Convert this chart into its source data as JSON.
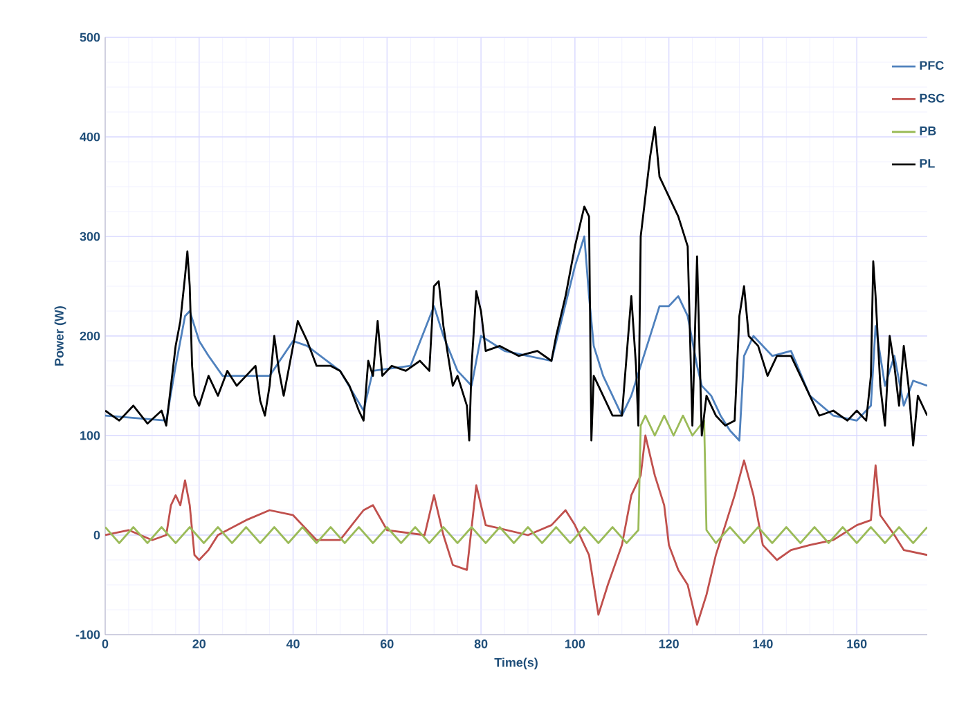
{
  "chart_data": {
    "type": "line",
    "xlabel": "Time(s)",
    "ylabel": "Power (W)",
    "xlim": [
      0,
      175
    ],
    "ylim": [
      -100,
      500
    ],
    "xticks": [
      0,
      20,
      40,
      60,
      80,
      100,
      120,
      140,
      160
    ],
    "yticks": [
      -100,
      0,
      100,
      200,
      300,
      400,
      500
    ],
    "grid": true,
    "legend": "top right",
    "series": [
      {
        "name": "PFC",
        "color": "#4f81bd",
        "x": [
          0,
          13,
          15,
          17,
          18,
          20,
          22,
          25,
          30,
          35,
          40,
          43,
          50,
          55,
          57,
          65,
          70,
          72,
          75,
          78,
          80,
          85,
          95,
          100,
          102,
          103,
          104,
          106,
          108,
          110,
          112,
          114,
          116,
          118,
          120,
          122,
          124,
          126,
          127,
          129,
          131,
          133,
          135,
          136,
          138,
          142,
          146,
          150,
          155,
          160,
          163,
          164,
          166,
          168,
          170,
          172,
          175
        ],
        "values": [
          120,
          115,
          170,
          220,
          225,
          195,
          180,
          160,
          160,
          160,
          195,
          190,
          165,
          125,
          165,
          170,
          230,
          200,
          165,
          150,
          200,
          185,
          175,
          270,
          300,
          240,
          190,
          160,
          140,
          120,
          140,
          170,
          200,
          230,
          230,
          240,
          220,
          170,
          150,
          140,
          120,
          105,
          95,
          180,
          200,
          180,
          185,
          140,
          120,
          115,
          130,
          210,
          150,
          180,
          130,
          155,
          150
        ]
      },
      {
        "name": "PSC",
        "color": "#c0504d",
        "x": [
          0,
          5,
          10,
          13,
          14,
          15,
          16,
          17,
          18,
          19,
          20,
          22,
          24,
          30,
          35,
          40,
          45,
          50,
          55,
          57,
          60,
          68,
          70,
          72,
          74,
          77,
          79,
          81,
          90,
          95,
          98,
          100,
          103,
          105,
          107,
          110,
          112,
          114,
          115,
          117,
          119,
          120,
          122,
          124,
          126,
          128,
          130,
          132,
          134,
          136,
          138,
          140,
          143,
          146,
          150,
          155,
          160,
          163,
          164,
          165,
          168,
          170,
          175
        ],
        "values": [
          0,
          5,
          -5,
          0,
          30,
          40,
          30,
          55,
          30,
          -20,
          -25,
          -15,
          0,
          15,
          25,
          20,
          -5,
          -5,
          25,
          30,
          5,
          0,
          40,
          0,
          -30,
          -35,
          50,
          10,
          0,
          10,
          25,
          10,
          -20,
          -80,
          -50,
          -10,
          40,
          60,
          100,
          60,
          30,
          -10,
          -35,
          -50,
          -90,
          -60,
          -20,
          10,
          40,
          75,
          40,
          -10,
          -25,
          -15,
          -10,
          -5,
          10,
          15,
          70,
          20,
          0,
          -15,
          -20
        ]
      },
      {
        "name": "PB",
        "color": "#9bbb59",
        "x": [
          0,
          3,
          6,
          9,
          12,
          15,
          18,
          21,
          24,
          27,
          30,
          33,
          36,
          39,
          42,
          45,
          48,
          51,
          54,
          57,
          60,
          63,
          66,
          69,
          72,
          75,
          78,
          81,
          84,
          87,
          90,
          93,
          96,
          99,
          102,
          105,
          108,
          111,
          113.5,
          114,
          115,
          117,
          119,
          121,
          123,
          125,
          127.5,
          128,
          130,
          133,
          136,
          139,
          142,
          145,
          148,
          151,
          154,
          157,
          160,
          163,
          166,
          169,
          172,
          175
        ],
        "values": [
          8,
          -8,
          8,
          -8,
          8,
          -8,
          8,
          -8,
          8,
          -8,
          8,
          -8,
          8,
          -8,
          8,
          -8,
          8,
          -8,
          8,
          -8,
          8,
          -8,
          8,
          -8,
          8,
          -8,
          8,
          -8,
          8,
          -8,
          8,
          -8,
          8,
          -8,
          8,
          -8,
          8,
          -8,
          5,
          110,
          120,
          100,
          120,
          100,
          120,
          100,
          115,
          5,
          -8,
          8,
          -8,
          8,
          -8,
          8,
          -8,
          8,
          -8,
          8,
          -8,
          8,
          -8,
          8,
          -8,
          8
        ]
      },
      {
        "name": "PL",
        "color": "#000000",
        "x": [
          0,
          3,
          6,
          9,
          12,
          13,
          14,
          15,
          16,
          17,
          17.5,
          18,
          18.5,
          19,
          20,
          22,
          24,
          26,
          28,
          30,
          32,
          33,
          34,
          35,
          36,
          37,
          38,
          40,
          41,
          43,
          45,
          48,
          50,
          52,
          54,
          55,
          56,
          57,
          58,
          59,
          61,
          64,
          67,
          69,
          70,
          71,
          72,
          73,
          74,
          75,
          77,
          77.5,
          78,
          79,
          80,
          81,
          84,
          88,
          92,
          95,
          96,
          98,
          100,
          102,
          103,
          103.5,
          104,
          106,
          108,
          110,
          111,
          112,
          113,
          113.5,
          114,
          116,
          117,
          118,
          120,
          122,
          124,
          125,
          126,
          127,
          128,
          130,
          132,
          134,
          135,
          136,
          137,
          139,
          141,
          143,
          146,
          148,
          150,
          152,
          155,
          158,
          160,
          162,
          163,
          163.5,
          164,
          165,
          166,
          167,
          168,
          169,
          170,
          171,
          172,
          173,
          175
        ],
        "values": [
          125,
          115,
          130,
          112,
          125,
          110,
          150,
          190,
          215,
          260,
          285,
          250,
          170,
          140,
          130,
          160,
          140,
          165,
          150,
          160,
          170,
          135,
          120,
          150,
          200,
          165,
          140,
          190,
          215,
          195,
          170,
          170,
          165,
          150,
          125,
          115,
          175,
          160,
          215,
          160,
          170,
          165,
          175,
          165,
          250,
          255,
          210,
          180,
          150,
          160,
          130,
          95,
          170,
          245,
          225,
          185,
          190,
          180,
          185,
          175,
          200,
          240,
          290,
          330,
          320,
          95,
          160,
          140,
          120,
          120,
          180,
          240,
          170,
          110,
          300,
          380,
          410,
          360,
          340,
          320,
          290,
          110,
          280,
          100,
          140,
          120,
          110,
          115,
          220,
          250,
          200,
          190,
          160,
          180,
          180,
          160,
          140,
          120,
          125,
          115,
          125,
          115,
          160,
          275,
          240,
          150,
          110,
          200,
          170,
          130,
          190,
          150,
          90,
          140,
          120
        ]
      }
    ]
  }
}
